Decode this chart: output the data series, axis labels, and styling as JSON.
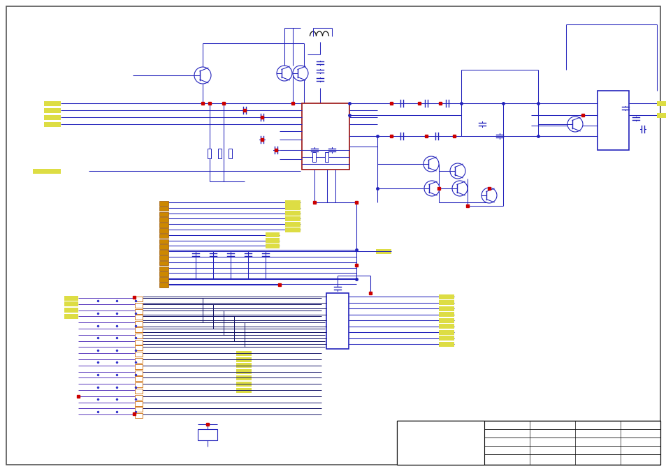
{
  "wire_color": "#2222bb",
  "wire_dark": "#111166",
  "yellow_color": "#dddd44",
  "red_color": "#cc0000",
  "orange_color": "#cc6600",
  "black_color": "#111111",
  "red_box_color": "#991111",
  "blue_box_color": "#2222bb"
}
